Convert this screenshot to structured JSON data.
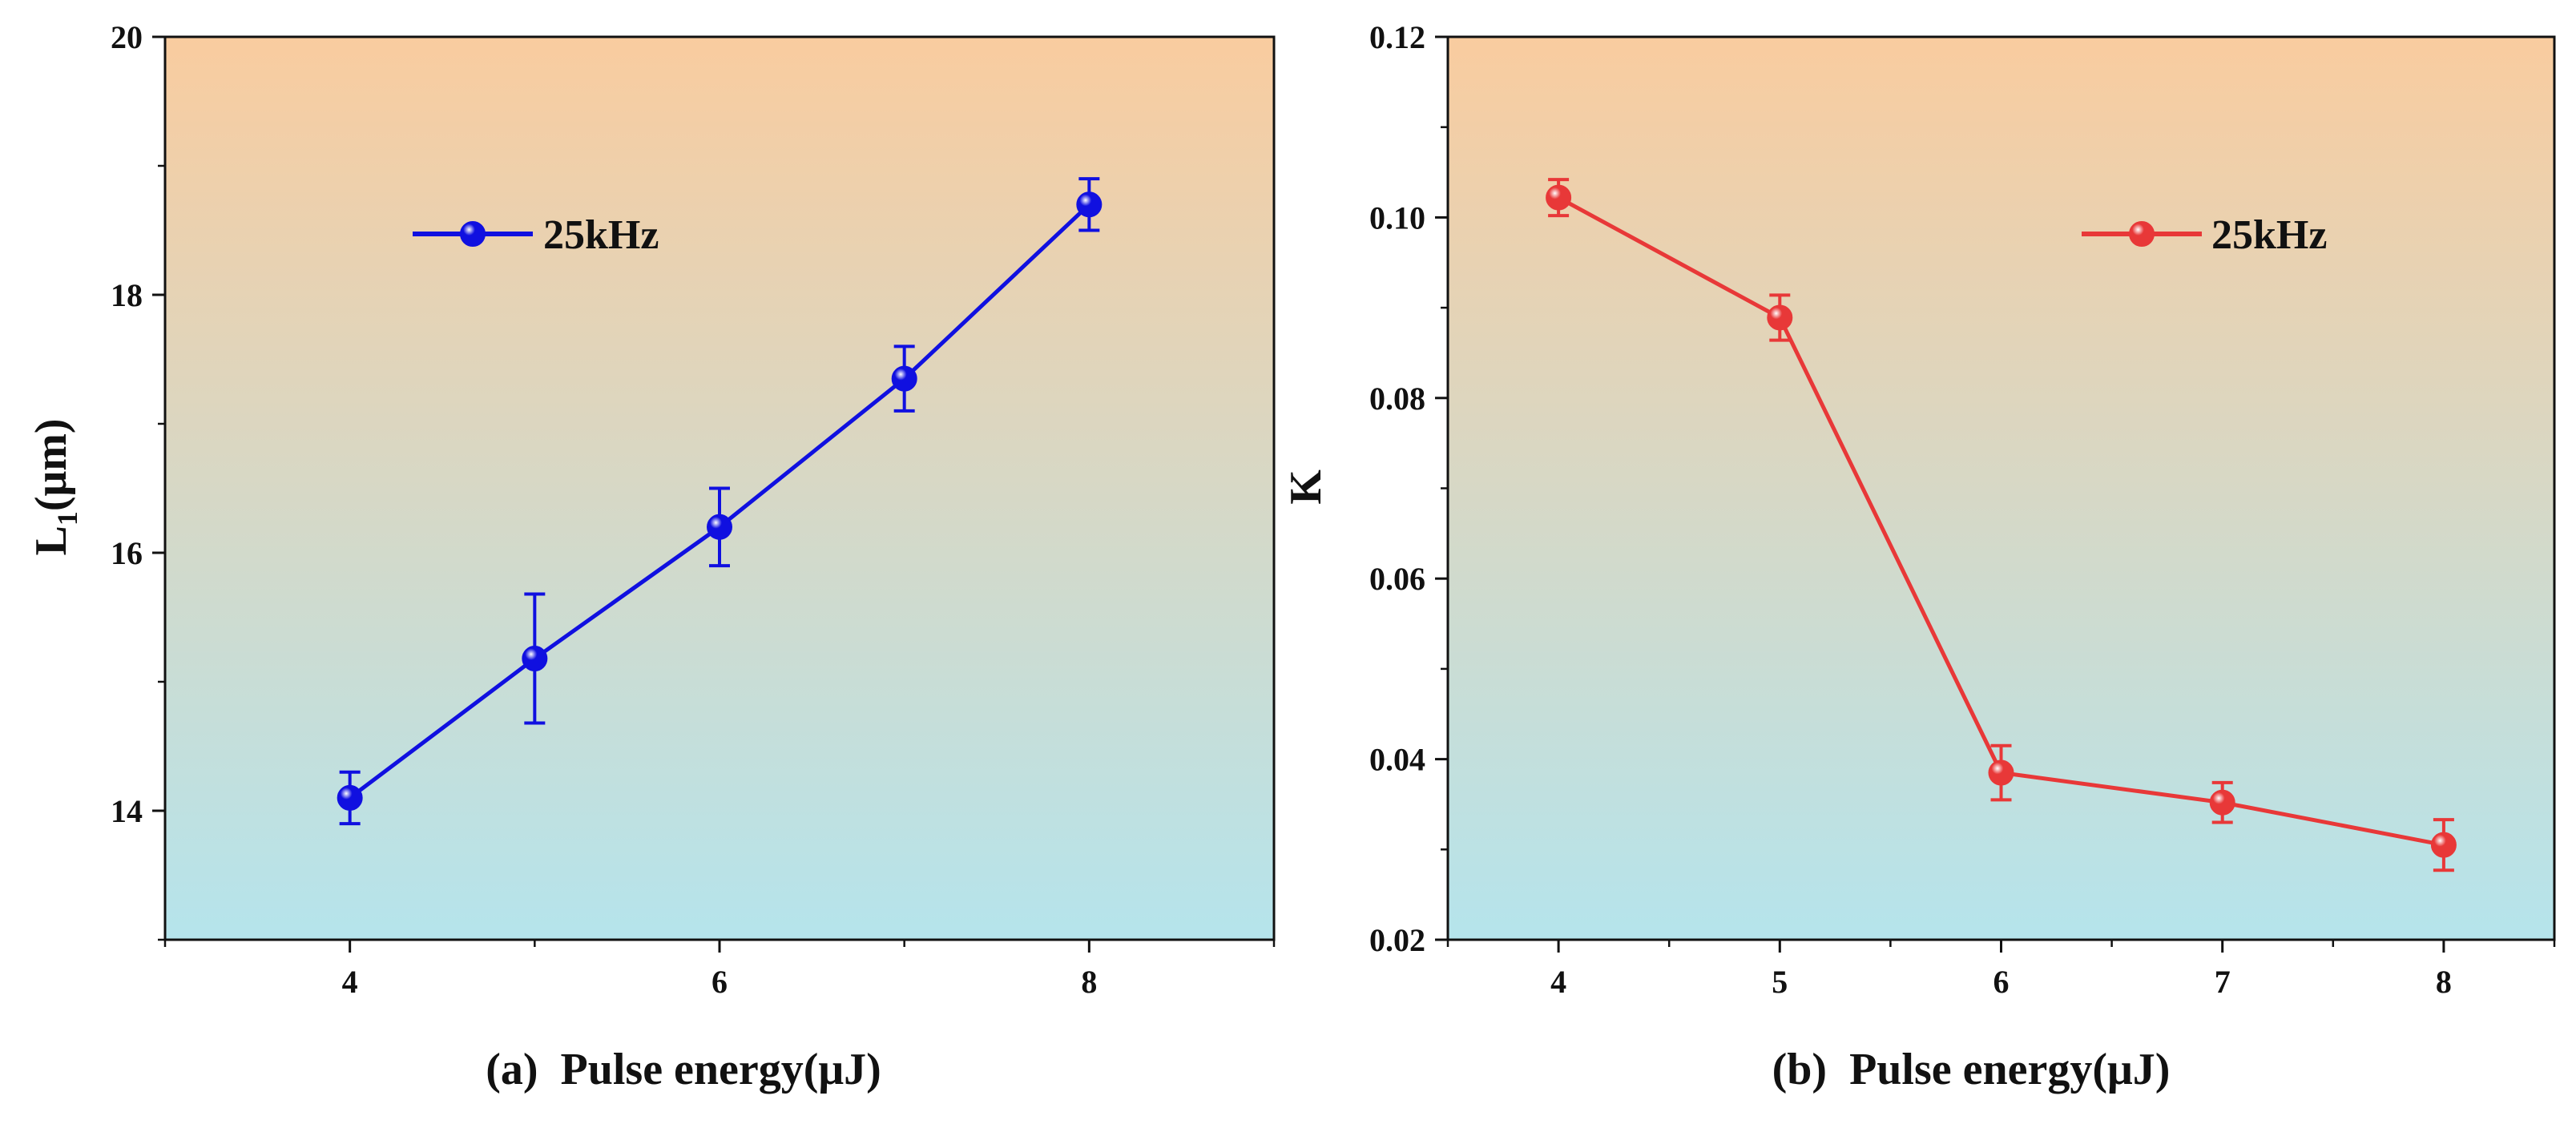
{
  "chart_data": [
    {
      "panel": "a",
      "type": "line",
      "title": "",
      "xlabel_prefix": "(a)",
      "xlabel": "Pulse energy(μJ)",
      "ylabel_main": "L",
      "ylabel_sub": "1",
      "ylabel_unit": "(μm)",
      "xlim": [
        3,
        9
      ],
      "ylim": [
        13,
        20
      ],
      "xticks": [
        4,
        6,
        8
      ],
      "yticks": [
        14,
        16,
        18,
        20
      ],
      "ytick_format": "integer",
      "grid": false,
      "legend": "top-left",
      "series": [
        {
          "name": "25kHz",
          "color": "#1010e0",
          "x": [
            4,
            5,
            6,
            7,
            8
          ],
          "y": [
            14.1,
            15.18,
            16.2,
            17.35,
            18.7
          ],
          "yerr": [
            0.2,
            0.5,
            0.3,
            0.25,
            0.2
          ]
        }
      ],
      "background_gradient": [
        "#f9cc9f",
        "#b5e4ec"
      ]
    },
    {
      "panel": "b",
      "type": "line",
      "title": "",
      "xlabel_prefix": "(b)",
      "xlabel": "Pulse energy(μJ)",
      "ylabel_main": "K",
      "ylabel_sub": "",
      "ylabel_unit": "",
      "xlim": [
        3.5,
        8.5
      ],
      "ylim": [
        0.02,
        0.12
      ],
      "xticks": [
        4,
        5,
        6,
        7,
        8
      ],
      "yticks": [
        0.02,
        0.04,
        0.06,
        0.08,
        0.1,
        0.12
      ],
      "ytick_format": "two-decimals",
      "grid": false,
      "legend": "top-right",
      "series": [
        {
          "name": "25kHz",
          "color": "#e83838",
          "x": [
            4,
            5,
            6,
            7,
            8
          ],
          "y": [
            0.1022,
            0.0889,
            0.0385,
            0.0352,
            0.0305
          ],
          "yerr": [
            0.002,
            0.0025,
            0.003,
            0.0022,
            0.0028
          ]
        }
      ],
      "background_gradient": [
        "#f9cc9f",
        "#b5e4ec"
      ]
    }
  ]
}
